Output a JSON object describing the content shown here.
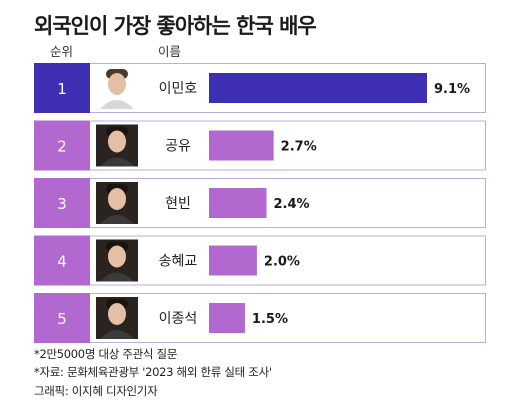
{
  "title": "외국인이 가장 좋아하는 한국 배우",
  "header": {
    "rank": "순위",
    "name": "이름"
  },
  "chart_data": {
    "type": "bar",
    "orientation": "horizontal",
    "categories": [
      "이민호",
      "공유",
      "현빈",
      "송혜교",
      "이종석"
    ],
    "ranks": [
      "1",
      "2",
      "3",
      "4",
      "5"
    ],
    "values": [
      9.1,
      2.7,
      2.4,
      2.0,
      1.5
    ],
    "value_labels": [
      "9.1%",
      "2.7%",
      "2.4%",
      "2.0%",
      "1.5%"
    ],
    "unit": "%",
    "highlight_color": "#3f2fb5",
    "bar_color": "#b169cf",
    "row_border_color": "#b7b0de"
  },
  "footnotes": [
    "*2만5000명 대상 주관식 질문",
    "*자료: 문화체육관광부 '2023 해외 한류 실태 조사'",
    "그래픽: 이지혜 디자인기자"
  ]
}
